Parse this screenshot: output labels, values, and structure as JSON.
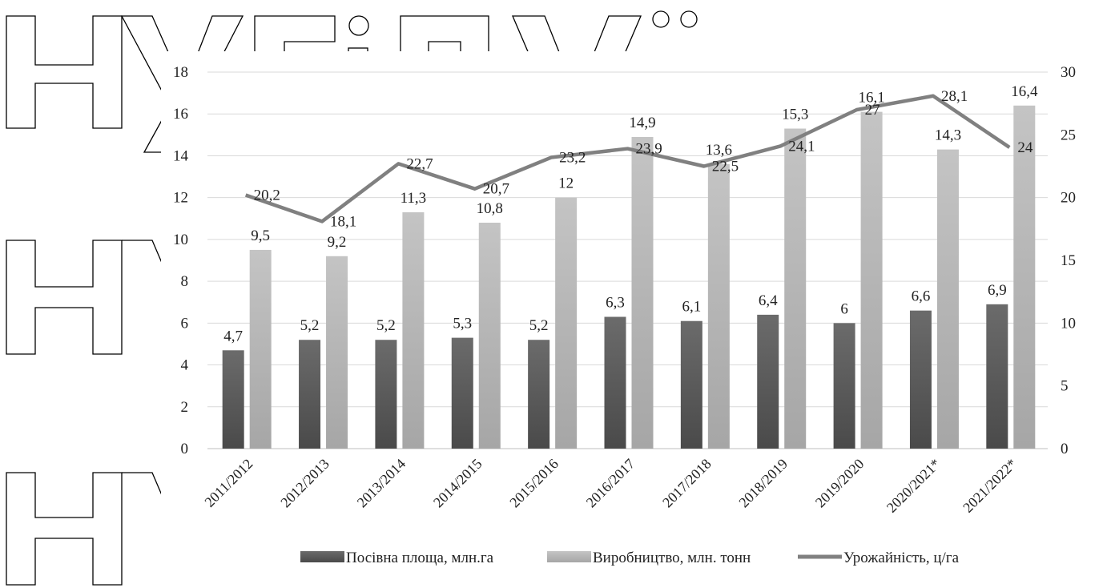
{
  "watermark": {
    "letters": "НУБіП України",
    "color": "#000000"
  },
  "chart_data": {
    "type": "bar",
    "categories": [
      "2011/2012",
      "2012/2013",
      "2013/2014",
      "2014/2015",
      "2015/2016",
      "2016/2017",
      "2017/2018",
      "2018/2019",
      "2019/2020",
      "2020/2021*",
      "2021/2022*"
    ],
    "series": [
      {
        "name": "Посівна площа, млн.га",
        "type": "bar",
        "axis": "left",
        "color": "#555555",
        "values": [
          4.7,
          5.2,
          5.2,
          5.3,
          5.2,
          6.3,
          6.1,
          6.4,
          6,
          6.6,
          6.9
        ],
        "labels": [
          "4,7",
          "5,2",
          "5,2",
          "5,3",
          "5,2",
          "6,3",
          "6,1",
          "6,4",
          "6",
          "6,6",
          "6,9"
        ]
      },
      {
        "name": "Виробництво, млн. тонн",
        "type": "bar",
        "axis": "left",
        "color": "#bdbdbd",
        "values": [
          9.5,
          9.2,
          11.3,
          10.8,
          12,
          14.9,
          13.6,
          15.3,
          16.1,
          14.3,
          16.4
        ],
        "labels": [
          "9,5",
          "9,2",
          "11,3",
          "10,8",
          "12",
          "14,9",
          "13,6",
          "15,3",
          "16,1",
          "14,3",
          "16,4"
        ]
      },
      {
        "name": "Урожайність, ц/га",
        "type": "line",
        "axis": "right",
        "color": "#808080",
        "values": [
          20.2,
          18.1,
          22.7,
          20.7,
          23.2,
          23.9,
          22.5,
          24.1,
          27,
          28.1,
          24
        ],
        "labels": [
          "20,2",
          "18,1",
          "22,7",
          "20,7",
          "23,2",
          "23,9",
          "22,5",
          "24,1",
          "27",
          "28,1",
          "24"
        ]
      }
    ],
    "y_left": {
      "min": 0,
      "max": 18,
      "ticks": [
        "0",
        "2",
        "4",
        "6",
        "8",
        "10",
        "12",
        "14",
        "16",
        "18"
      ]
    },
    "y_right": {
      "min": 0,
      "max": 30,
      "ticks": [
        "0",
        "5",
        "10",
        "15",
        "20",
        "25",
        "30"
      ]
    },
    "grid": true,
    "legend_position": "bottom"
  }
}
